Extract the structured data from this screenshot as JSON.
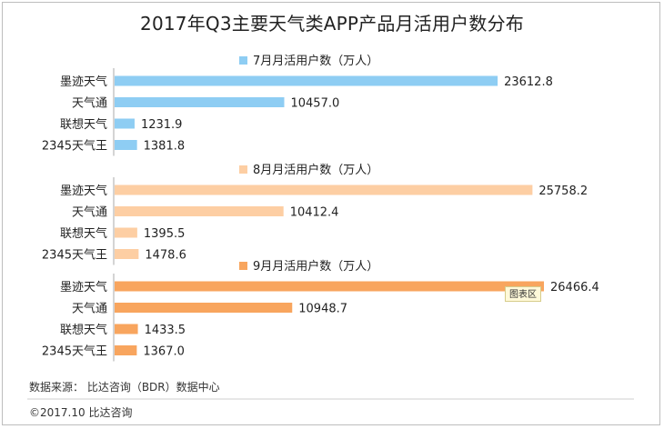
{
  "title": "2017年Q3主要天气类APP产品月活用户数分布",
  "chart_data": {
    "type": "bar",
    "orientation": "horizontal",
    "categories": [
      "墨迹天气",
      "天气通",
      "联想天气",
      "2345天气王"
    ],
    "panels": [
      {
        "name": "7月月活用户数（万人）",
        "color": "#8ecdf3",
        "values": [
          23612.8,
          10457.0,
          1231.9,
          1381.8
        ],
        "labels": [
          "23612.8",
          "10457.0",
          "1231.9",
          "1381.8"
        ]
      },
      {
        "name": "8月月活用户数（万人）",
        "color": "#fdcea3",
        "values": [
          25758.2,
          10412.4,
          1395.5,
          1478.6
        ],
        "labels": [
          "25758.2",
          "10412.4",
          "1395.5",
          "1478.6"
        ]
      },
      {
        "name": "9月月活用户数（万人）",
        "color": "#f8a55e",
        "values": [
          26466.4,
          10948.7,
          1433.5,
          1367.0
        ],
        "labels": [
          "26466.4",
          "10948.7",
          "1433.5",
          "1367.0"
        ]
      }
    ]
  },
  "tooltip": "图表区",
  "footer": {
    "source": "数据来源： 比达咨询（BDR）数据中心",
    "copyright": "©2017.10   比达咨询"
  }
}
